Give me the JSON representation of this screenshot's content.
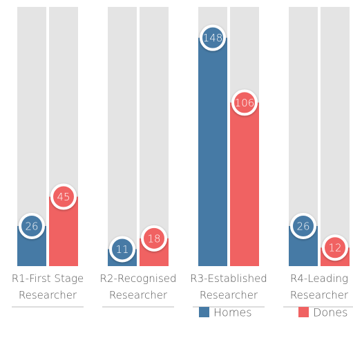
{
  "chart_data": {
    "type": "bar",
    "categories": [
      "R1-First Stage Researcher",
      "R2-Recognised Researcher",
      "R3-Established Researcher",
      "R4-Leading Researcher"
    ],
    "series": [
      {
        "name": "Homes",
        "color": "#467aa5",
        "values": [
          26,
          11,
          148,
          26
        ]
      },
      {
        "name": "Dones",
        "color": "#f06262",
        "values": [
          45,
          18,
          106,
          12
        ]
      }
    ],
    "ylim": [
      0,
      168
    ],
    "legend": "bottom-right"
  }
}
